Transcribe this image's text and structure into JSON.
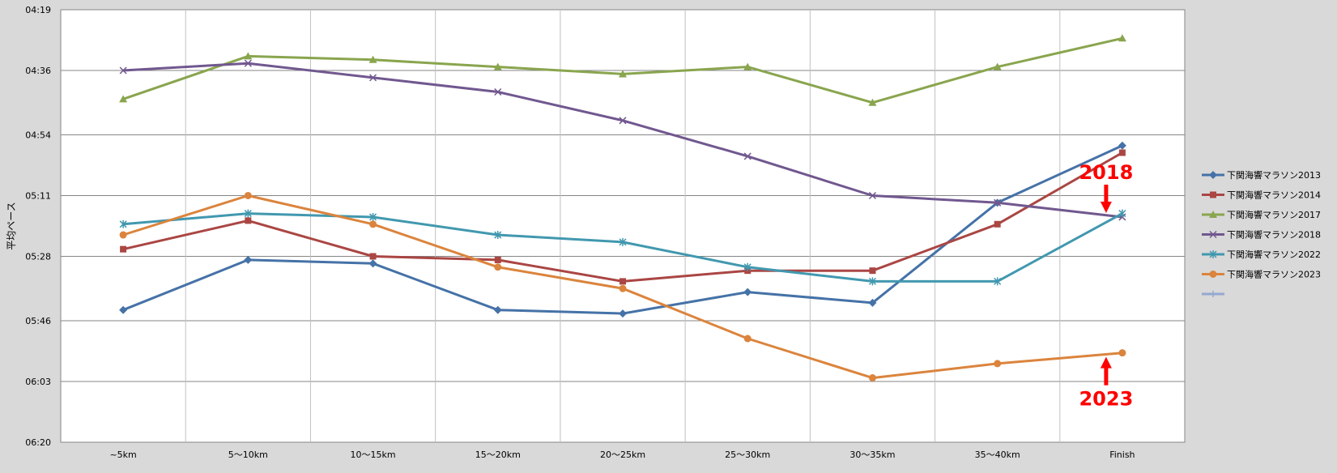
{
  "chart_data": {
    "type": "line",
    "title": "",
    "xlabel": "",
    "ylabel": "平均ペース",
    "categories": [
      "~5km",
      "5〜10km",
      "10〜15km",
      "15〜20km",
      "20〜25km",
      "25〜30km",
      "30〜35km",
      "35〜40km",
      "Finish"
    ],
    "y_ticks": [
      "04:19",
      "04:36",
      "04:54",
      "05:11",
      "05:28",
      "05:46",
      "06:03",
      "06:20"
    ],
    "ylim": [
      "04:19",
      "06:20"
    ],
    "y_unit": "min:sec per km",
    "y_axis_reversed": true,
    "grid": true,
    "legend_position": "right",
    "series": [
      {
        "name": "下関海響マラソン2013",
        "color": "#4572a7",
        "marker": "diamond",
        "values": [
          "05:43",
          "05:29",
          "05:30",
          "05:43",
          "05:44",
          "05:38",
          "05:41",
          "05:13",
          "04:57"
        ]
      },
      {
        "name": "下関海響マラソン2014",
        "color": "#aa4643",
        "marker": "square",
        "values": [
          "05:26",
          "05:18",
          "05:28",
          "05:29",
          "05:35",
          "05:32",
          "05:32",
          "05:19",
          "04:59"
        ]
      },
      {
        "name": "下関海響マラソン2017",
        "color": "#89a54e",
        "marker": "triangle",
        "values": [
          "04:44",
          "04:32",
          "04:33",
          "04:35",
          "04:37",
          "04:35",
          "04:45",
          "04:35",
          "04:27"
        ]
      },
      {
        "name": "下関海響マラソン2018",
        "color": "#71588f",
        "marker": "x",
        "values": [
          "04:36",
          "04:34",
          "04:38",
          "04:42",
          "04:50",
          "05:00",
          "05:11",
          "05:13",
          "05:17"
        ]
      },
      {
        "name": "下関海響マラソン2022",
        "color": "#4198af",
        "marker": "star",
        "values": [
          "05:19",
          "05:16",
          "05:17",
          "05:22",
          "05:24",
          "05:31",
          "05:35",
          "05:35",
          "05:16"
        ]
      },
      {
        "name": "下関海響マラソン2023",
        "color": "#db843d",
        "marker": "circle",
        "values": [
          "05:22",
          "05:11",
          "05:19",
          "05:31",
          "05:37",
          "05:51",
          "06:02",
          "05:58",
          "05:55"
        ]
      }
    ],
    "extra_legend_marker_color": "#93a9cf",
    "annotations": [
      {
        "text": "2018",
        "category": "Finish",
        "series": "下関海響マラソン2018",
        "arrow": "down",
        "color": "#ff0000"
      },
      {
        "text": "2023",
        "category": "Finish",
        "series": "下関海響マラソン2023",
        "arrow": "up",
        "color": "#ff0000"
      }
    ]
  }
}
